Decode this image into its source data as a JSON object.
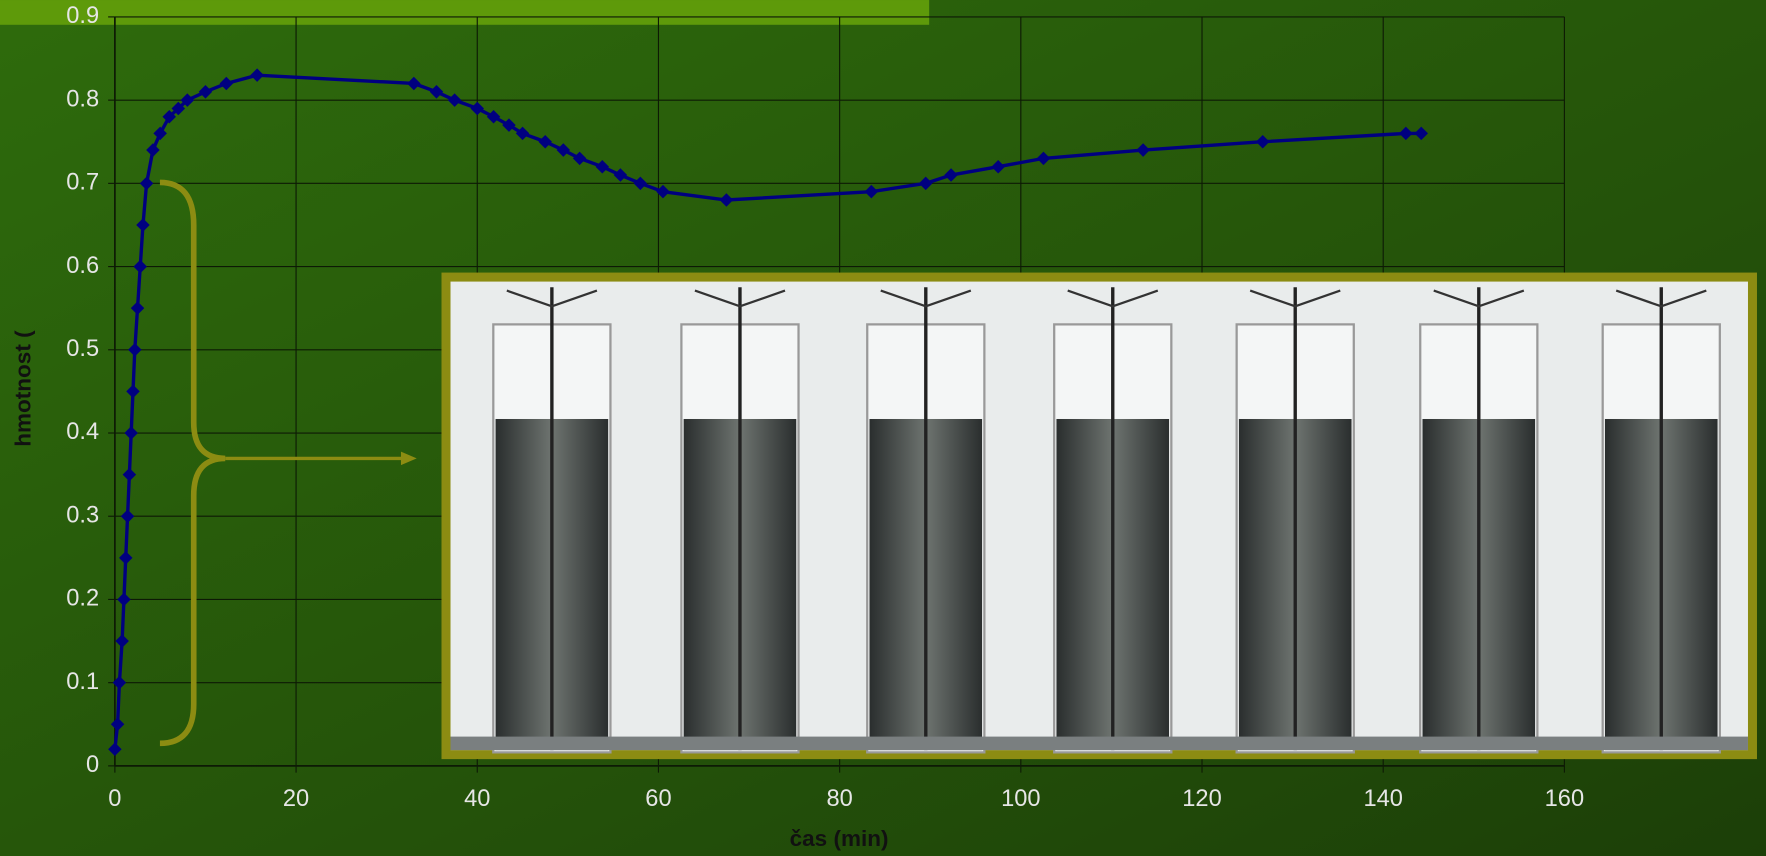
{
  "chart_data": {
    "type": "line",
    "x_label": "čas (min)",
    "y_label": "hmotnost (",
    "xlim": [
      0,
      160
    ],
    "xticks": [
      0,
      20,
      40,
      60,
      80,
      100,
      120,
      140,
      160
    ],
    "ylim": [
      0,
      0.9
    ],
    "yticks": [
      0,
      0.1,
      0.2,
      0.3,
      0.4,
      0.5,
      0.6,
      0.7,
      0.8,
      0.9
    ],
    "grid": true,
    "series": [
      {
        "color": "#000080",
        "x": [
          0,
          0.3,
          0.5,
          0.8,
          1,
          1.2,
          1.4,
          1.6,
          1.8,
          2,
          2.2,
          2.5,
          2.8,
          3.1,
          3.5,
          4.2,
          5,
          6,
          7,
          8,
          10,
          12.3,
          15.7,
          33,
          35.5,
          37.5,
          40,
          41.8,
          43.5,
          45,
          47.5,
          49.5,
          51.3,
          53.8,
          55.8,
          58,
          60.5,
          67.5,
          83.5,
          89.5,
          92.3,
          97.5,
          102.5,
          113.5,
          126.7,
          142.5,
          144.2
        ],
        "values": [
          0.02,
          0.05,
          0.1,
          0.15,
          0.2,
          0.25,
          0.3,
          0.35,
          0.4,
          0.45,
          0.5,
          0.55,
          0.6,
          0.65,
          0.7,
          0.74,
          0.76,
          0.78,
          0.79,
          0.8,
          0.81,
          0.82,
          0.83,
          0.82,
          0.81,
          0.8,
          0.79,
          0.78,
          0.77,
          0.76,
          0.75,
          0.74,
          0.73,
          0.72,
          0.71,
          0.7,
          0.69,
          0.68,
          0.69,
          0.7,
          0.71,
          0.72,
          0.73,
          0.74,
          0.75,
          0.76,
          0.76
        ]
      }
    ]
  }
}
